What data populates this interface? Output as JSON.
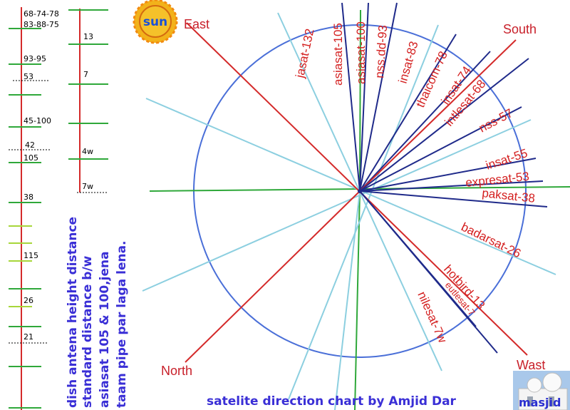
{
  "compass": {
    "east": "East",
    "south": "South",
    "north": "North",
    "west": "Wast"
  },
  "sun_label": "sun",
  "masjid_label": "masjid",
  "footer": "satelite direction chart by Amjid Dar",
  "side_note": [
    "dish antena height distance",
    "standard distance b/w",
    "asiasat 105 & 100,jena",
    "taam pipe par laga lena."
  ],
  "ladder_left": [
    "68-74-78",
    "83-88-75",
    "93-95",
    "53",
    "45-100",
    "42",
    "105",
    "38",
    "115",
    "26",
    "21"
  ],
  "ladder_right": [
    "13",
    "7",
    "4w",
    "7w"
  ],
  "satellites": [
    "jasat-132",
    "asiasat-105",
    "asiasat-100",
    "nss.dd-93",
    "insat-83",
    "thaicom-78",
    "insat-74",
    "intlesat-68",
    "nss-57",
    "insat-55",
    "expresat-53",
    "paksat-38",
    "badarsat-26",
    "hotbird-13",
    "eutlesat-7",
    "nilesat-7w"
  ],
  "colors": {
    "circle": "#4a6fd8",
    "red": "#d42a2a",
    "navy": "#1f2a8a",
    "sky": "#8ccfe0",
    "green": "#2fa83a",
    "lime": "#a7d63a"
  }
}
